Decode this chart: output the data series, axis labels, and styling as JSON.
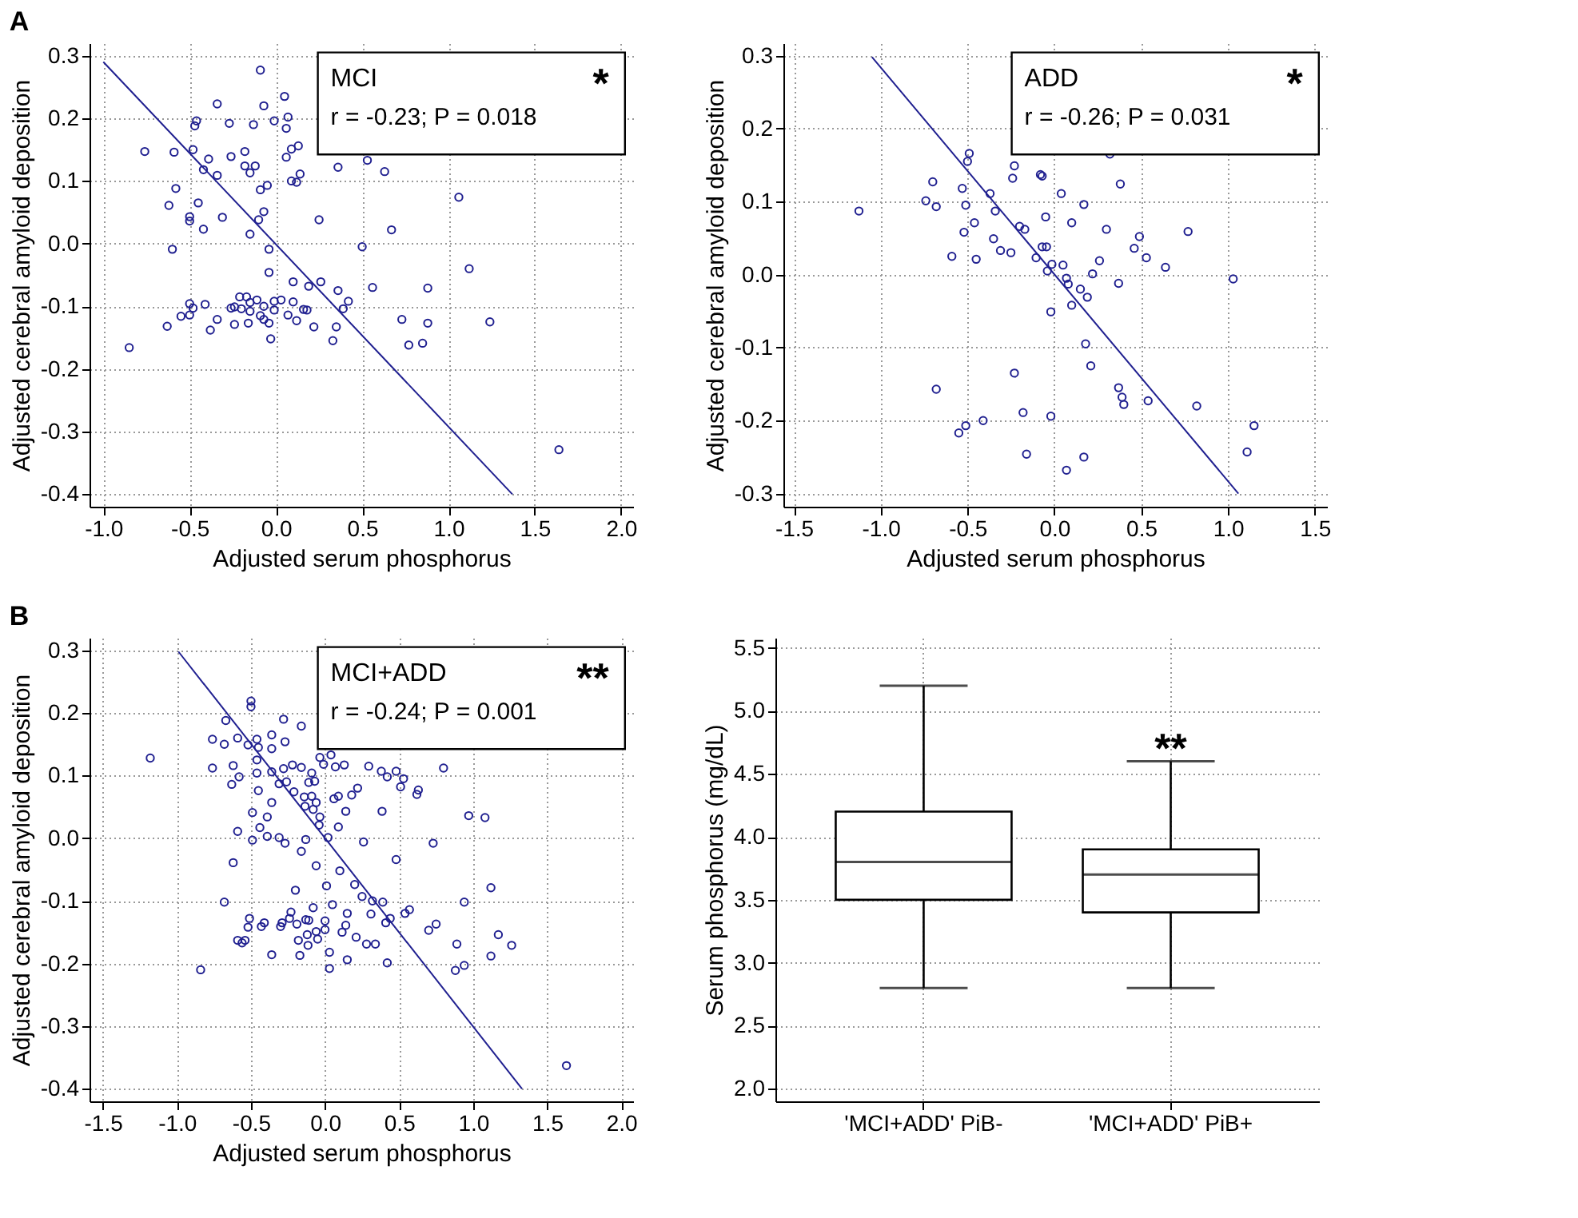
{
  "chart_data": [
    {
      "type": "scatter",
      "title": "A",
      "xlabel": "Adjusted serum phosphorus",
      "ylabel": "Adjusted cerebral amyloid deposition",
      "annotations": [
        "MCI",
        "*",
        "r = -0.23; P = 0.018"
      ],
      "xlim": [
        -1.08,
        2.07
      ],
      "ylim": [
        -0.42,
        0.32
      ],
      "xticks": [
        {
          "value": -1,
          "label": "-1.0"
        },
        -0.5,
        {
          "value": 0,
          "label": "0.0"
        },
        0.5,
        {
          "value": 1,
          "label": "1.0"
        },
        1.5,
        {
          "value": 2,
          "label": "2.0"
        }
      ],
      "yticks": [
        -0.4,
        -0.3,
        -0.2,
        -0.1,
        {
          "value": 0,
          "label": "0.0"
        },
        0.1,
        0.2,
        0.3
      ],
      "grid": true,
      "marker": "circle",
      "series": [
        {
          "type": "scatter",
          "color": "#202090",
          "x": [
            -0.85,
            -0.76,
            -0.59,
            -0.62,
            -0.6,
            -0.58,
            -0.48,
            -0.47,
            -0.46,
            -0.45,
            -0.5,
            -0.5,
            -0.42,
            -0.42,
            -0.39,
            -0.34,
            -0.34,
            -0.31,
            -0.27,
            -0.26,
            -0.18,
            -0.18,
            -0.15,
            -0.13,
            -0.12,
            -0.15,
            -0.09,
            -0.07,
            -0.09,
            -0.05,
            -0.07,
            -0.1,
            -0.04,
            -0.04,
            -0.01,
            0.05,
            0.07,
            0.06,
            0.06,
            0.09,
            0.09,
            0.12,
            0.14,
            0.13,
            0.1,
            0.19,
            0.26,
            0.25,
            0.36,
            0.53,
            0.63,
            0.67,
            0.5,
            0.56,
            0.36,
            1.06,
            1.12,
            0.88,
            0.88,
            0.73,
            0.77,
            0.85,
            1.24,
            1.64,
            0.35,
            0.33,
            0.42,
            0.39,
            0.22,
            0.16,
            0.18,
            0.12,
            0.1,
            0.07,
            0.03,
            -0.01,
            -0.01,
            -0.03,
            -0.04,
            -0.07,
            -0.07,
            -0.09,
            -0.11,
            -0.15,
            -0.15,
            -0.16,
            -0.17,
            -0.21,
            -0.2,
            -0.24,
            -0.26,
            -0.24,
            -0.34,
            -0.38,
            -0.41,
            -0.48,
            -0.5,
            -0.5,
            -0.55,
            -0.63
          ],
          "values": [
            -0.166,
            0.147,
            0.146,
            0.061,
            -0.009,
            0.088,
            0.15,
            0.188,
            0.196,
            0.065,
            0.043,
            0.036,
            0.023,
            0.118,
            0.135,
            0.109,
            0.223,
            0.042,
            0.192,
            0.139,
            0.147,
            0.124,
            0.113,
            0.19,
            0.124,
            0.015,
            0.277,
            0.22,
            0.086,
            0.093,
            0.051,
            0.038,
            -0.009,
            -0.046,
            0.196,
            0.235,
            0.202,
            0.184,
            0.138,
            0.151,
            0.1,
            0.098,
            0.111,
            0.156,
            -0.061,
            -0.068,
            -0.061,
            0.038,
            0.122,
            0.133,
            0.115,
            0.022,
            -0.005,
            -0.07,
            -0.075,
            0.074,
            -0.04,
            -0.071,
            -0.127,
            -0.121,
            -0.162,
            -0.159,
            -0.125,
            -0.329,
            -0.133,
            -0.155,
            -0.092,
            -0.104,
            -0.133,
            -0.105,
            -0.106,
            -0.123,
            -0.093,
            -0.114,
            -0.09,
            -0.092,
            -0.106,
            -0.152,
            -0.127,
            -0.121,
            -0.1,
            -0.115,
            -0.09,
            -0.094,
            -0.108,
            -0.127,
            -0.085,
            -0.085,
            -0.104,
            -0.101,
            -0.103,
            -0.129,
            -0.121,
            -0.138,
            -0.097,
            -0.103,
            -0.096,
            -0.114,
            -0.116,
            -0.132
          ]
        },
        {
          "type": "line",
          "marker": "none",
          "color": "#202090",
          "x": [
            -1.0,
            1.37
          ],
          "values": [
            0.29,
            -0.4
          ]
        }
      ]
    },
    {
      "type": "scatter",
      "xlabel": "Adjusted serum phosphorus",
      "ylabel": "Adjusted cerebral amyloid deposition",
      "annotations": [
        "ADD",
        "*",
        "r = -0.26; P = 0.031"
      ],
      "xlim": [
        -1.56,
        1.57
      ],
      "ylim": [
        -0.318,
        0.317
      ],
      "xticks": [
        -1.5,
        {
          "value": -1,
          "label": "-1.0"
        },
        -0.5,
        {
          "value": 0,
          "label": "0.0"
        },
        0.5,
        {
          "value": 1,
          "label": "1.0"
        },
        1.5
      ],
      "yticks": [
        -0.3,
        -0.2,
        -0.1,
        {
          "value": 0,
          "label": "0.0"
        },
        0.1,
        0.2,
        0.3
      ],
      "grid": true,
      "marker": "circle",
      "series": [
        {
          "type": "scatter",
          "color": "#202090",
          "x": [
            -1.125,
            -0.74,
            -0.68,
            -0.7,
            -0.59,
            -0.53,
            -0.52,
            -0.51,
            -0.5,
            -0.49,
            -0.46,
            -0.45,
            -0.37,
            -0.34,
            -0.35,
            -0.31,
            -0.25,
            -0.24,
            -0.23,
            -0.2,
            -0.17,
            -0.105,
            -0.08,
            -0.07,
            -0.05,
            -0.07,
            -0.045,
            -0.04,
            -0.014,
            0.04,
            0.05,
            0.07,
            0.08,
            0.1,
            0.17,
            0.15,
            0.1,
            0.19,
            0.22,
            0.26,
            0.3,
            0.32,
            0.38,
            0.37,
            0.46,
            0.49,
            0.53,
            0.64,
            0.77,
            1.03,
            -0.02,
            0.18,
            0.21,
            -0.23,
            0.37,
            0.39,
            0.4,
            0.54,
            0.82,
            1.15,
            1.11,
            -0.68,
            -0.55,
            -0.51,
            -0.41,
            -0.18,
            -0.02,
            -0.16,
            0.17,
            0.07
          ],
          "values": [
            0.087,
            0.101,
            0.093,
            0.127,
            0.025,
            0.118,
            0.058,
            0.095,
            0.155,
            0.166,
            0.071,
            0.021,
            0.111,
            0.087,
            0.049,
            0.033,
            0.03,
            0.132,
            0.149,
            0.066,
            0.062,
            0.023,
            0.137,
            0.135,
            0.079,
            0.038,
            0.038,
            0.005,
            0.014,
            0.111,
            0.013,
            -0.005,
            -0.013,
            0.071,
            0.096,
            -0.02,
            -0.042,
            -0.031,
            0.001,
            0.019,
            0.062,
            0.165,
            0.124,
            -0.012,
            0.036,
            0.052,
            0.023,
            0.01,
            0.059,
            -0.006,
            -0.051,
            -0.095,
            -0.125,
            -0.135,
            -0.155,
            -0.168,
            -0.178,
            -0.173,
            -0.18,
            -0.207,
            -0.243,
            -0.157,
            -0.217,
            -0.207,
            -0.2,
            -0.189,
            -0.194,
            -0.246,
            -0.25,
            -0.268
          ]
        },
        {
          "type": "line",
          "marker": "none",
          "color": "#202090",
          "x": [
            -1.05,
            1.06
          ],
          "values": [
            0.298,
            -0.3
          ]
        }
      ]
    },
    {
      "type": "scatter",
      "title": "B",
      "xlabel": "Adjusted serum phosphorus",
      "ylabel": "Adjusted cerebral amyloid deposition",
      "annotations": [
        "MCI+ADD",
        "**",
        "r = -0.24; P = 0.001"
      ],
      "xlim": [
        -1.59,
        2.08
      ],
      "ylim": [
        -0.42,
        0.32
      ],
      "xticks": [
        -1.5,
        {
          "value": -1,
          "label": "-1.0"
        },
        -0.5,
        {
          "value": 0,
          "label": "0.0"
        },
        0.5,
        {
          "value": 1,
          "label": "1.0"
        },
        1.5,
        {
          "value": 2,
          "label": "2.0"
        }
      ],
      "yticks": [
        -0.4,
        -0.3,
        -0.2,
        -0.1,
        {
          "value": 0,
          "label": "0.0"
        },
        0.1,
        0.2,
        0.3
      ],
      "grid": true,
      "marker": "circle",
      "series": [
        {
          "type": "scatter",
          "color": "#202090",
          "x": [
            -1.18,
            -0.84,
            -0.76,
            -0.76,
            -0.68,
            -0.67,
            -0.68,
            -0.62,
            -0.63,
            -0.62,
            -0.59,
            -0.58,
            -0.59,
            -0.59,
            -0.54,
            -0.56,
            -0.51,
            -0.52,
            -0.52,
            -0.5,
            -0.5,
            -0.49,
            -0.49,
            -0.46,
            -0.45,
            -0.46,
            -0.46,
            -0.45,
            -0.44,
            -0.43,
            -0.41,
            -0.39,
            -0.39,
            -0.36,
            -0.36,
            -0.36,
            -0.36,
            -0.36,
            -0.31,
            -0.31,
            -0.3,
            -0.28,
            -0.27,
            -0.28,
            -0.27,
            -0.29,
            -0.26,
            -0.24,
            -0.23,
            -0.22,
            -0.21,
            -0.2,
            -0.19,
            -0.18,
            -0.17,
            -0.16,
            -0.16,
            -0.16,
            -0.14,
            -0.135,
            -0.13,
            -0.13,
            -0.12,
            -0.115,
            -0.11,
            -0.11,
            -0.09,
            -0.09,
            -0.08,
            -0.08,
            -0.07,
            -0.06,
            -0.06,
            -0.06,
            -0.05,
            -0.04,
            -0.035,
            -0.035,
            -0.01,
            0.0,
            0.0,
            0.01,
            0.02,
            0.03,
            0.03,
            0.04,
            0.05,
            0.06,
            0.07,
            0.09,
            0.09,
            0.1,
            0.115,
            0.13,
            0.14,
            0.14,
            0.15,
            0.15,
            0.18,
            0.2,
            0.21,
            0.22,
            0.25,
            0.26,
            0.28,
            0.295,
            0.31,
            0.32,
            0.34,
            0.38,
            0.385,
            0.39,
            0.41,
            0.42,
            0.42,
            0.44,
            0.48,
            0.48,
            0.51,
            0.53,
            0.54,
            0.57,
            0.62,
            0.63,
            0.7,
            0.75,
            0.73,
            0.8,
            0.88,
            0.89,
            0.94,
            0.94,
            0.97,
            1.08,
            1.12,
            1.12,
            1.17,
            1.26,
            1.63
          ],
          "values": [
            0.128,
            -0.21,
            0.158,
            0.112,
            0.15,
            0.188,
            -0.102,
            -0.039,
            0.086,
            0.116,
            0.16,
            0.098,
            0.011,
            -0.163,
            -0.163,
            -0.167,
            -0.128,
            -0.142,
            0.149,
            0.219,
            0.21,
            0.041,
            -0.003,
            0.158,
            0.145,
            0.125,
            0.104,
            0.076,
            0.017,
            -0.141,
            -0.135,
            0.034,
            0.003,
            0.057,
            0.106,
            0.143,
            0.165,
            -0.186,
            0.087,
            0.001,
            -0.141,
            0.19,
            0.154,
            0.111,
            -0.008,
            -0.135,
            0.09,
            -0.128,
            -0.118,
            0.117,
            0.074,
            -0.083,
            -0.137,
            -0.163,
            -0.187,
            0.179,
            0.113,
            -0.021,
            0.066,
            0.051,
            -0.002,
            -0.13,
            -0.154,
            -0.171,
            -0.131,
            0.089,
            0.104,
            0.067,
            -0.111,
            0.046,
            0.091,
            0.057,
            -0.044,
            -0.149,
            -0.161,
            0.021,
            0.034,
            0.129,
            0.118,
            -0.132,
            -0.146,
            -0.076,
            0.001,
            -0.182,
            -0.208,
            0.133,
            -0.106,
            0.063,
            0.114,
            0.018,
            0.067,
            -0.052,
            -0.15,
            0.117,
            0.043,
            -0.139,
            -0.12,
            -0.194,
            0.069,
            -0.074,
            -0.158,
            0.08,
            -0.093,
            -0.006,
            -0.169,
            0.115,
            -0.121,
            -0.1,
            -0.169,
            0.107,
            0.043,
            -0.102,
            -0.135,
            0.098,
            -0.199,
            -0.128,
            0.107,
            -0.034,
            0.082,
            0.095,
            -0.12,
            -0.114,
            0.07,
            0.077,
            -0.147,
            -0.137,
            -0.008,
            0.112,
            -0.211,
            -0.169,
            -0.203,
            -0.102,
            0.036,
            0.033,
            -0.079,
            -0.188,
            -0.154,
            -0.171,
            -0.363
          ]
        },
        {
          "type": "line",
          "marker": "none",
          "color": "#202090",
          "x": [
            -0.99,
            1.33
          ],
          "values": [
            0.298,
            -0.4
          ]
        }
      ]
    },
    {
      "type": "box",
      "ylabel": "Serum phosphorus (mg/dL)",
      "categories": [
        "'MCI+ADD' PiB-",
        "'MCI+ADD' PiB+"
      ],
      "ylim": [
        1.9,
        5.58
      ],
      "yticks": [
        {
          "value": 2,
          "label": "2.0"
        },
        2.5,
        {
          "value": 3,
          "label": "3.0"
        },
        3.5,
        {
          "value": 4,
          "label": "4.0"
        },
        4.5,
        {
          "value": 5,
          "label": "5.0"
        },
        5.5
      ],
      "grid": true,
      "annotations": [
        "**"
      ],
      "boxes": [
        {
          "low": 2.8,
          "q1": 3.5,
          "median": 3.8,
          "q3": 4.2,
          "high": 5.2
        },
        {
          "low": 2.8,
          "q1": 3.4,
          "median": 3.7,
          "q3": 3.9,
          "high": 4.6
        }
      ]
    }
  ]
}
